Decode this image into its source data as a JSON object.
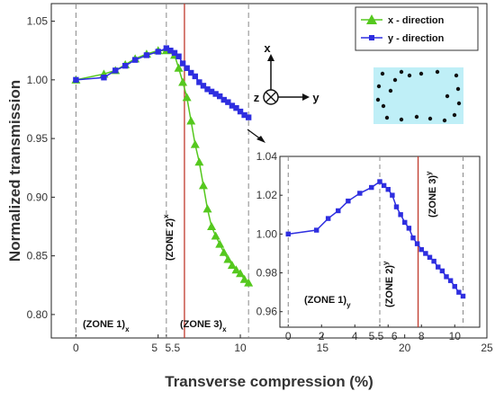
{
  "chart_data": {
    "type": "line",
    "xlabel": "Transverse compression (%)",
    "ylabel": "Normalized transmission",
    "xlim": [
      -1.5,
      25
    ],
    "ylim": [
      0.78,
      1.065
    ],
    "xticks": [
      "0",
      "5",
      "5.5",
      "10",
      "15",
      "20",
      "25"
    ],
    "yticks": [
      "0.80",
      "0.85",
      "0.90",
      "0.95",
      "1.00",
      "1.05"
    ],
    "series": [
      {
        "name": "x - direction",
        "color": "#55c81e",
        "marker": "triangle",
        "x": [
          0,
          1.7,
          2.4,
          3.0,
          3.6,
          4.3,
          5.0,
          5.5,
          6.0,
          6.25,
          6.5,
          6.75,
          7.0,
          7.25,
          7.5,
          7.75,
          8.0,
          8.25,
          8.5,
          8.75,
          9.0,
          9.25,
          9.5,
          9.75,
          10.0,
          10.25,
          10.5
        ],
        "y": [
          1.0,
          1.005,
          1.008,
          1.013,
          1.018,
          1.022,
          1.025,
          1.025,
          1.021,
          1.01,
          0.998,
          0.985,
          0.965,
          0.945,
          0.93,
          0.91,
          0.89,
          0.875,
          0.867,
          0.86,
          0.853,
          0.847,
          0.842,
          0.838,
          0.835,
          0.83,
          0.827
        ]
      },
      {
        "name": "y - direction",
        "color": "#2e2ee0",
        "marker": "square",
        "x": [
          0,
          1.7,
          2.4,
          3.0,
          3.6,
          4.3,
          5.0,
          5.5,
          5.75,
          6.0,
          6.25,
          6.5,
          6.75,
          7.0,
          7.25,
          7.5,
          7.75,
          8.0,
          8.25,
          8.5,
          8.75,
          9.0,
          9.25,
          9.5,
          9.75,
          10.0,
          10.25,
          10.5
        ],
        "y": [
          1.0,
          1.002,
          1.008,
          1.012,
          1.017,
          1.021,
          1.024,
          1.027,
          1.025,
          1.023,
          1.02,
          1.014,
          1.01,
          1.006,
          1.003,
          0.998,
          0.995,
          0.992,
          0.99,
          0.988,
          0.986,
          0.983,
          0.981,
          0.978,
          0.976,
          0.973,
          0.97,
          0.968
        ]
      }
    ],
    "vlines_dashed": [
      0,
      5.5,
      10.5
    ],
    "vline_red": 6.6,
    "zone_labels": [
      "(ZONE 1)",
      "(ZONE 2)",
      "(ZONE 3)"
    ],
    "zone_subscript_main": "x",
    "legend_position": "top-right",
    "axes_diagram": {
      "x": "x",
      "y": "y",
      "z": "z"
    },
    "inset": {
      "type": "line",
      "xlim": [
        -0.5,
        11.5
      ],
      "ylim": [
        0.952,
        1.04
      ],
      "xticks": [
        "0",
        "2",
        "4",
        "5.5",
        "6",
        "8",
        "10"
      ],
      "yticks": [
        "0.96",
        "0.98",
        "1.00",
        "1.02",
        "1.04"
      ],
      "series_ref": "y - direction",
      "vlines_dashed": [
        0,
        5.5,
        10.5
      ],
      "vline_red": 7.8,
      "zone_subscript": "y"
    }
  }
}
